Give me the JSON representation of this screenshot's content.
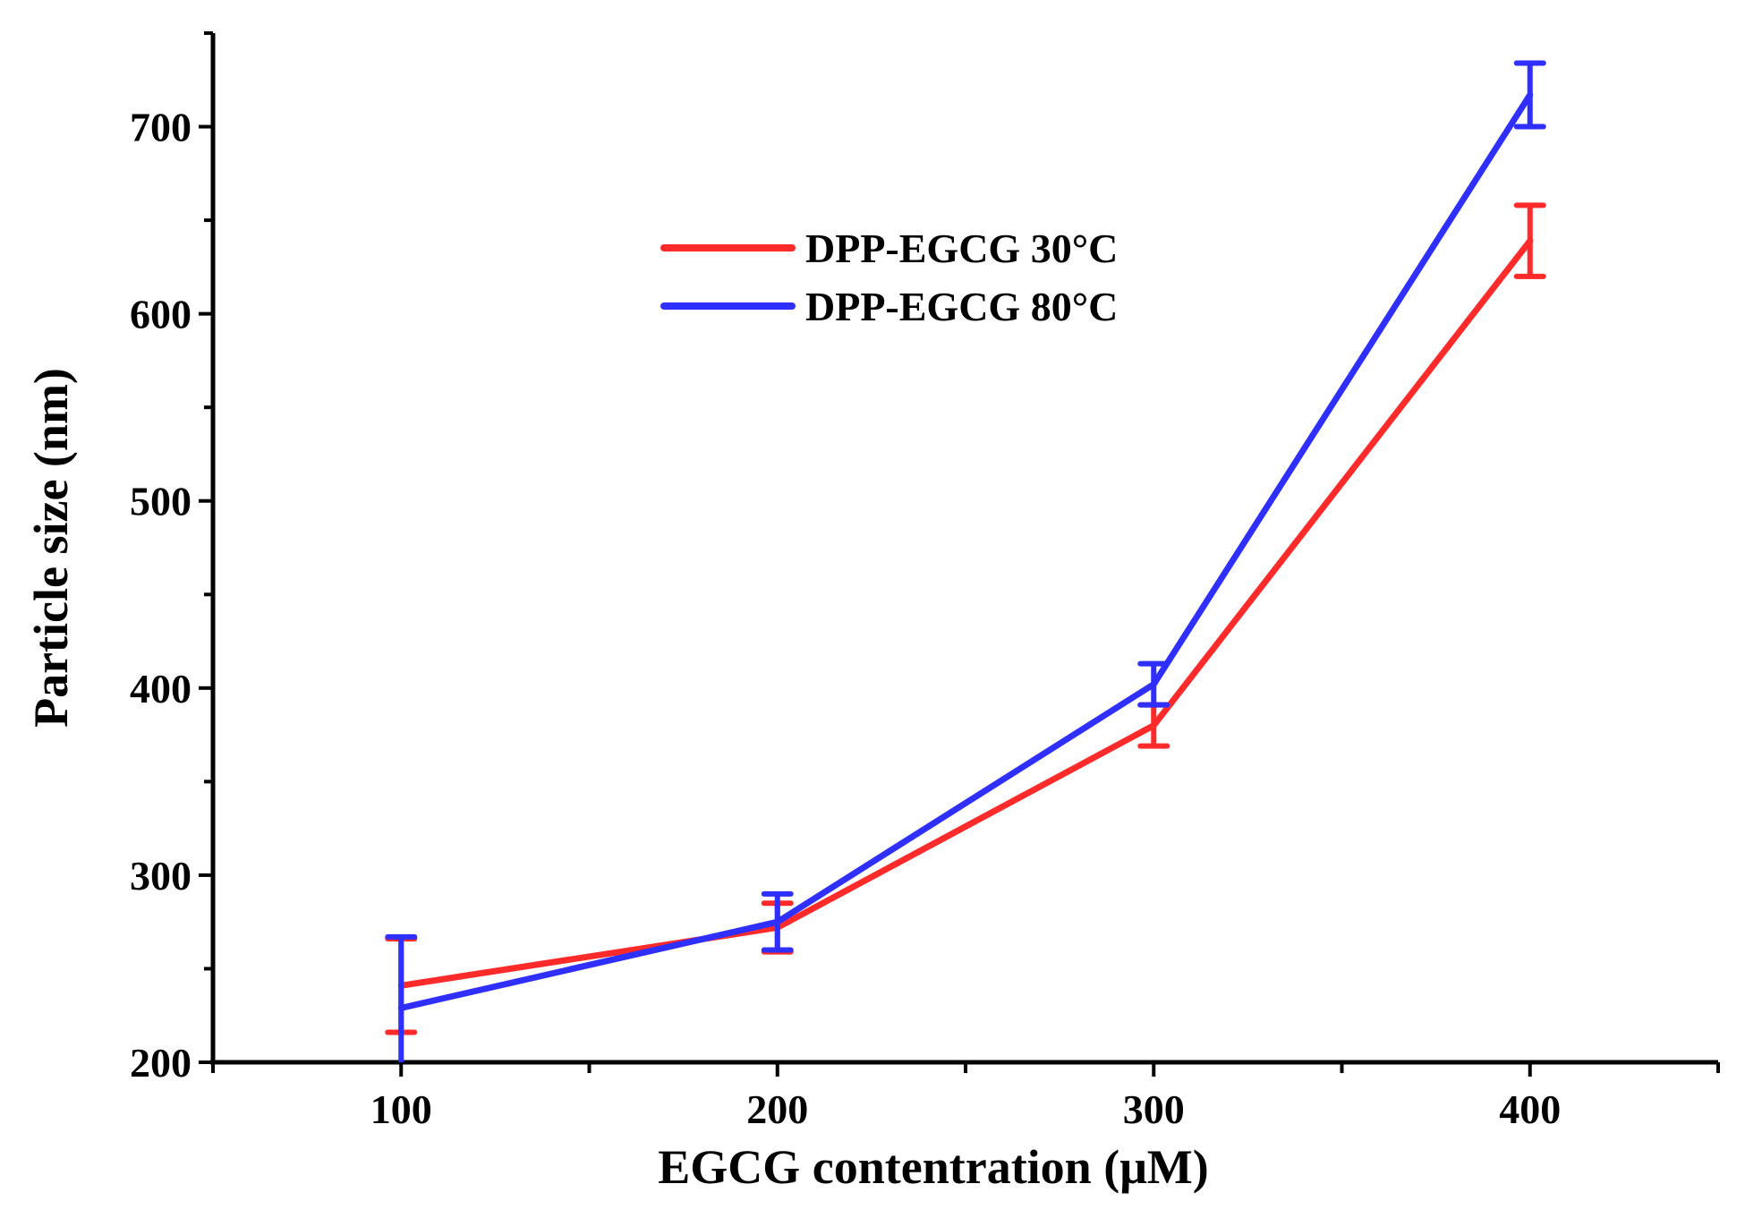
{
  "chart_data": {
    "type": "line",
    "xlabel": "EGCG contentration (μM)",
    "ylabel": "Particle size (nm)",
    "x": [
      100,
      200,
      300,
      400
    ],
    "xlim": [
      50,
      450
    ],
    "ylim": [
      200,
      750
    ],
    "xticks": [
      100,
      200,
      300,
      400
    ],
    "yticks": [
      200,
      300,
      400,
      500,
      600,
      700
    ],
    "legend_position": "upper-center",
    "grid": false,
    "series": [
      {
        "name": "DPP-EGCG 30°C",
        "color": "#ff2a2a",
        "values": [
          241,
          272,
          380,
          639
        ],
        "errors": [
          25,
          13,
          11,
          19
        ]
      },
      {
        "name": "DPP-EGCG 80°C",
        "color": "#2f2fff",
        "values": [
          229,
          275,
          402,
          717
        ],
        "errors": [
          38,
          15,
          11,
          17
        ]
      }
    ]
  }
}
